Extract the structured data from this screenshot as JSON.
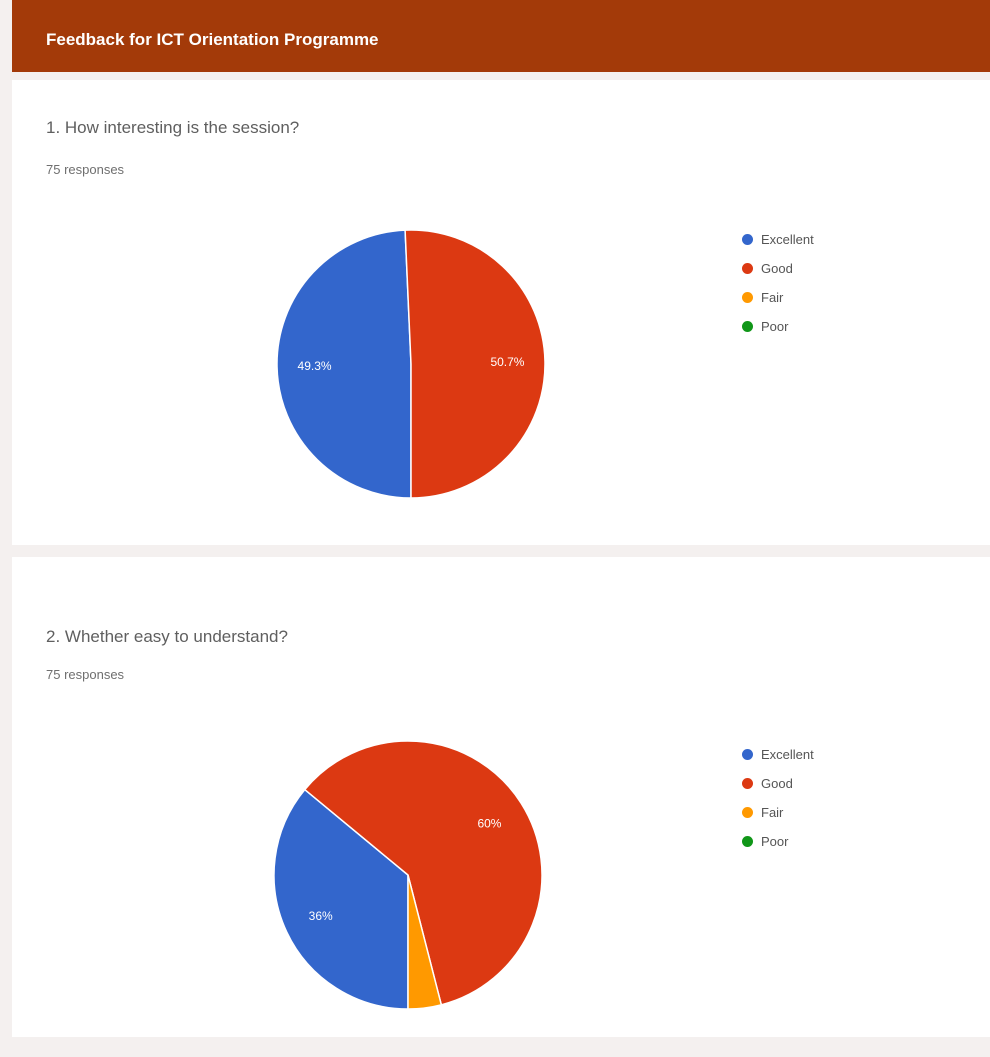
{
  "header": {
    "title": "Feedback for ICT Orientation Programme"
  },
  "colors": {
    "Excellent": "#3366cc",
    "Good": "#dc3912",
    "Fair": "#ff9900",
    "Poor": "#109618"
  },
  "chart_data": [
    {
      "type": "pie",
      "title": "1. How interesting is the session?",
      "subtitle": "75 responses",
      "legend_position": "right",
      "categories": [
        "Excellent",
        "Good",
        "Fair",
        "Poor"
      ],
      "values": [
        49.3,
        50.7,
        0,
        0
      ],
      "labels": [
        "49.3%",
        "50.7%",
        "",
        ""
      ]
    },
    {
      "type": "pie",
      "title": "2. Whether easy to understand?",
      "subtitle": "75 responses",
      "legend_position": "right",
      "categories": [
        "Excellent",
        "Good",
        "Fair",
        "Poor"
      ],
      "values": [
        36,
        60,
        4,
        0
      ],
      "labels": [
        "36%",
        "60%",
        "",
        ""
      ]
    }
  ]
}
